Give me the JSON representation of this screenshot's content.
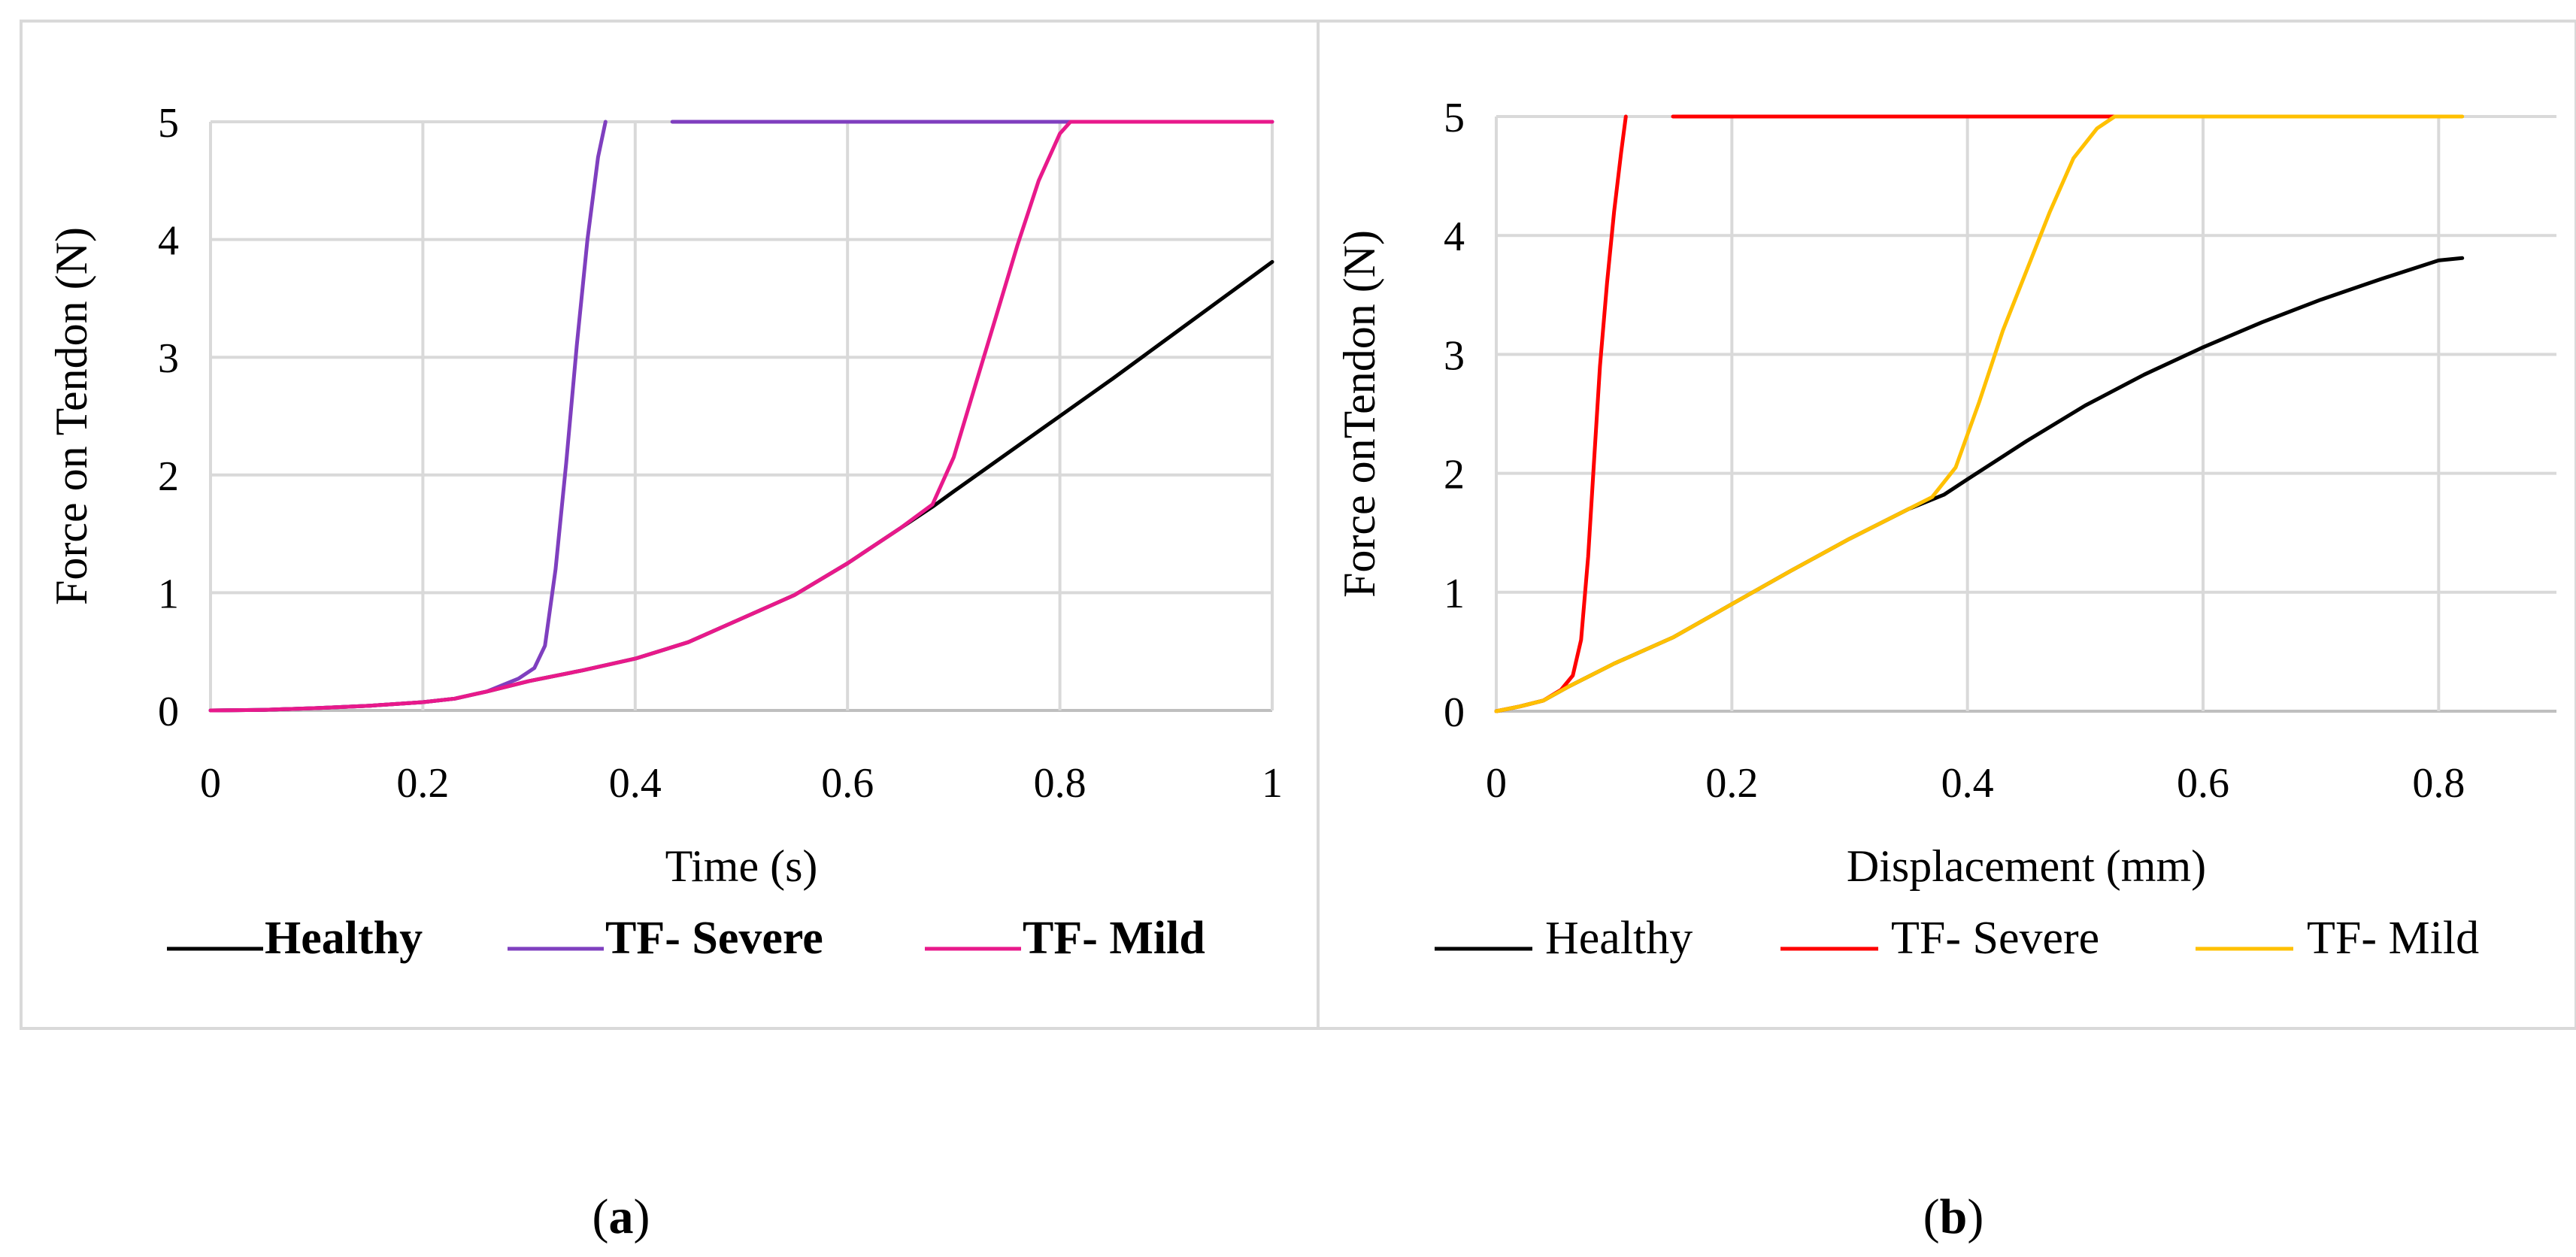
{
  "chart_data": [
    {
      "type": "line",
      "panel_label": "(a)",
      "panel_label_open": "(",
      "panel_label_letter": "a",
      "panel_label_close": ")",
      "xlabel": "Time (s)",
      "ylabel": "Force on Tendon (N)",
      "xlim": [
        0,
        1
      ],
      "ylim": [
        0,
        5
      ],
      "xticks": [
        0,
        0.2,
        0.4,
        0.6,
        0.8,
        1
      ],
      "xtick_labels": [
        "0",
        "0.2",
        "0.4",
        "0.6",
        "0.8",
        "1"
      ],
      "yticks": [
        0,
        1,
        2,
        3,
        4,
        5
      ],
      "ytick_labels": [
        "0",
        "1",
        "2",
        "3",
        "4",
        "5"
      ],
      "grid": true,
      "legend_position": "bottom",
      "legend_bold": true,
      "series": [
        {
          "name": "Healthy",
          "color": "#000000",
          "x": [
            0,
            0.05,
            0.1,
            0.15,
            0.2,
            0.23,
            0.26,
            0.3,
            0.35,
            0.4,
            0.45,
            0.5,
            0.55,
            0.6,
            0.65,
            0.68,
            0.7,
            0.75,
            0.8,
            0.85,
            0.9,
            0.95,
            1
          ],
          "y": [
            0,
            0.005,
            0.02,
            0.04,
            0.07,
            0.1,
            0.16,
            0.25,
            0.34,
            0.44,
            0.58,
            0.78,
            0.98,
            1.25,
            1.55,
            1.73,
            1.86,
            2.18,
            2.5,
            2.82,
            3.15,
            3.48,
            3.81
          ]
        },
        {
          "name": "TF- Severe",
          "color": "#7f3fbf",
          "x": [
            0,
            0.05,
            0.1,
            0.15,
            0.2,
            0.23,
            0.26,
            0.29,
            0.305,
            0.315,
            0.325,
            0.335,
            0.345,
            0.355,
            0.365,
            0.372
          ],
          "y": [
            0,
            0.005,
            0.02,
            0.04,
            0.07,
            0.1,
            0.16,
            0.27,
            0.36,
            0.55,
            1.2,
            2.1,
            3.1,
            4.0,
            4.7,
            5.0
          ]
        },
        {
          "name": "TF- Severe",
          "color": "#7f3fbf",
          "x": [
            0.435,
            1
          ],
          "y": [
            5,
            5
          ]
        },
        {
          "name": "TF- Mild",
          "color": "#e8198b",
          "x": [
            0,
            0.05,
            0.1,
            0.15,
            0.2,
            0.23,
            0.26,
            0.3,
            0.35,
            0.4,
            0.45,
            0.5,
            0.55,
            0.6,
            0.65,
            0.68,
            0.7,
            0.72,
            0.74,
            0.76,
            0.78,
            0.8,
            0.81,
            1
          ],
          "y": [
            0,
            0.005,
            0.02,
            0.04,
            0.07,
            0.1,
            0.16,
            0.25,
            0.34,
            0.44,
            0.58,
            0.78,
            0.98,
            1.25,
            1.55,
            1.75,
            2.15,
            2.75,
            3.35,
            3.95,
            4.5,
            4.9,
            5.0,
            5.0
          ]
        }
      ],
      "legend": [
        {
          "name": "Healthy",
          "color": "#000000"
        },
        {
          "name": "TF- Severe",
          "color": "#7f3fbf"
        },
        {
          "name": "TF- Mild",
          "color": "#e8198b"
        }
      ]
    },
    {
      "type": "line",
      "panel_label": "(b)",
      "panel_label_open": "(",
      "panel_label_letter": "b",
      "panel_label_close": ")",
      "xlabel": "Displacement (mm)",
      "ylabel": "Force onTendon (N)",
      "xlim": [
        0,
        0.9
      ],
      "ylim": [
        0,
        5
      ],
      "xticks": [
        0,
        0.2,
        0.4,
        0.6,
        0.8
      ],
      "xtick_labels": [
        "0",
        "0.2",
        "0.4",
        "0.6",
        "0.8"
      ],
      "yticks": [
        0,
        1,
        2,
        3,
        4,
        5
      ],
      "ytick_labels": [
        "0",
        "1",
        "2",
        "3",
        "4",
        "5"
      ],
      "grid": true,
      "legend_position": "bottom",
      "legend_bold": false,
      "series": [
        {
          "name": "Healthy",
          "color": "#000000",
          "x": [
            0,
            0.02,
            0.04,
            0.06,
            0.1,
            0.15,
            0.2,
            0.25,
            0.3,
            0.35,
            0.38,
            0.4,
            0.45,
            0.5,
            0.55,
            0.6,
            0.65,
            0.7,
            0.75,
            0.8,
            0.82
          ],
          "y": [
            0,
            0.04,
            0.09,
            0.2,
            0.4,
            0.62,
            0.9,
            1.18,
            1.45,
            1.7,
            1.82,
            1.95,
            2.27,
            2.57,
            2.83,
            3.06,
            3.27,
            3.46,
            3.63,
            3.79,
            3.81
          ]
        },
        {
          "name": "TF- Severe",
          "color": "#ff0000",
          "x": [
            0,
            0.02,
            0.04,
            0.055,
            0.065,
            0.072,
            0.078,
            0.083,
            0.088,
            0.094,
            0.1,
            0.106,
            0.11
          ],
          "y": [
            0,
            0.04,
            0.09,
            0.18,
            0.3,
            0.6,
            1.3,
            2.1,
            2.9,
            3.6,
            4.2,
            4.7,
            5.0
          ]
        },
        {
          "name": "TF- Severe",
          "color": "#ff0000",
          "x": [
            0.15,
            0.61
          ],
          "y": [
            5,
            5
          ]
        },
        {
          "name": "TF- Mild",
          "color": "#ffc000",
          "x": [
            0,
            0.02,
            0.04,
            0.06,
            0.1,
            0.15,
            0.2,
            0.25,
            0.3,
            0.35,
            0.37,
            0.39,
            0.41,
            0.43,
            0.45,
            0.47,
            0.49,
            0.51,
            0.525,
            0.82
          ],
          "y": [
            0,
            0.04,
            0.09,
            0.2,
            0.4,
            0.62,
            0.9,
            1.18,
            1.45,
            1.7,
            1.8,
            2.05,
            2.6,
            3.2,
            3.7,
            4.2,
            4.65,
            4.9,
            5.0,
            5.0
          ]
        }
      ],
      "legend": [
        {
          "name": "Healthy",
          "color": "#000000"
        },
        {
          "name": "TF- Severe",
          "color": "#ff0000"
        },
        {
          "name": "TF- Mild",
          "color": "#ffc000"
        }
      ]
    }
  ]
}
